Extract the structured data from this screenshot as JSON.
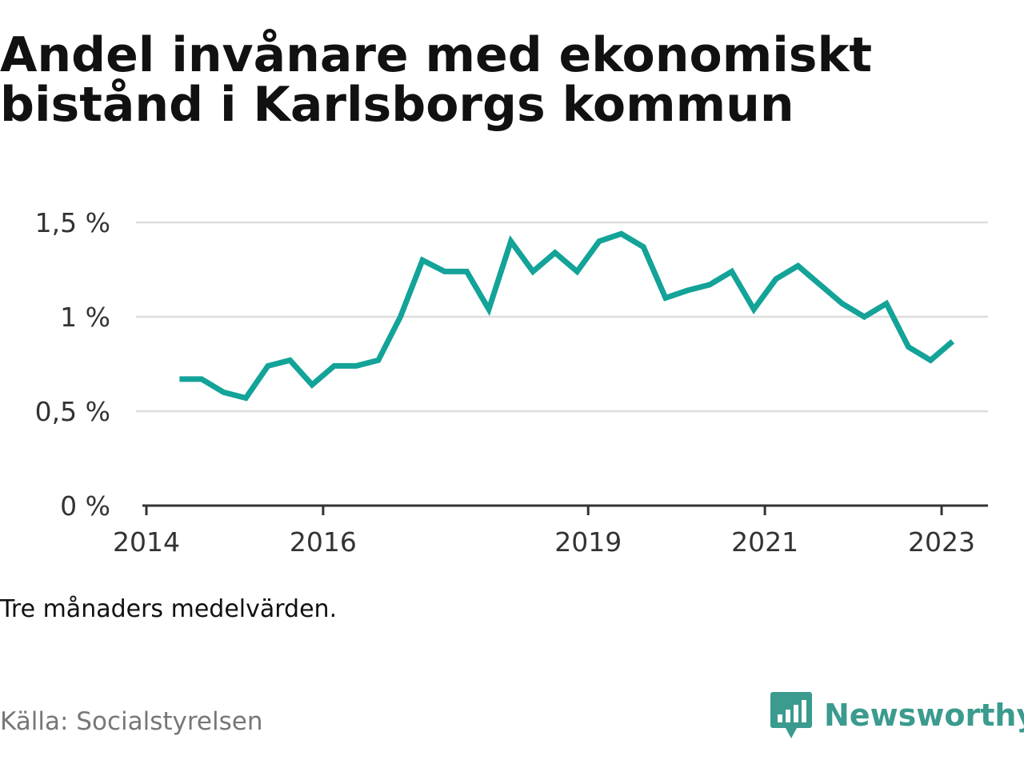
{
  "title": "Andel invånare med ekonomiskt bistånd i Karlsborgs kommun",
  "note": "Tre månaders medelvärden.",
  "source": "Källa: Socialstyrelsen",
  "brand": {
    "name": "Newsworthy",
    "color": "#3a9b8e"
  },
  "colors": {
    "line": "#13a398",
    "grid": "#dddddd",
    "axis": "#333333"
  },
  "chart_data": {
    "type": "line",
    "title": "Andel invånare med ekonomiskt bistånd i Karlsborgs kommun",
    "xlabel": "",
    "ylabel": "",
    "xlim": [
      2014.0,
      2023.5
    ],
    "ylim": [
      0,
      1.5
    ],
    "x_ticks": [
      2014,
      2016,
      2019,
      2021,
      2023
    ],
    "y_ticks": [
      {
        "value": 0,
        "label": "0 %"
      },
      {
        "value": 0.5,
        "label": "0,5 %"
      },
      {
        "value": 1,
        "label": "1 %"
      },
      {
        "value": 1.5,
        "label": "1,5 %"
      }
    ],
    "grid": true,
    "series": [
      {
        "x": [
          2014.375,
          2014.625,
          2014.875,
          2015.125,
          2015.375,
          2015.625,
          2015.875,
          2016.125,
          2016.375,
          2016.625,
          2016.875,
          2017.125,
          2017.375,
          2017.625,
          2017.875,
          2018.125,
          2018.375,
          2018.625,
          2018.875,
          2019.125,
          2019.375,
          2019.625,
          2019.875,
          2020.125,
          2020.375,
          2020.625,
          2020.875,
          2021.125,
          2021.375,
          2021.625,
          2021.875,
          2022.125,
          2022.375,
          2022.625,
          2022.875,
          2023.125
        ],
        "values": [
          0.67,
          0.67,
          0.6,
          0.57,
          0.74,
          0.77,
          0.64,
          0.74,
          0.74,
          0.77,
          1.0,
          1.3,
          1.24,
          1.24,
          1.04,
          1.4,
          1.24,
          1.34,
          1.24,
          1.4,
          1.44,
          1.37,
          1.1,
          1.14,
          1.17,
          1.24,
          1.04,
          1.2,
          1.27,
          1.17,
          1.07,
          1.0,
          1.07,
          0.84,
          0.77,
          0.87
        ]
      }
    ]
  }
}
